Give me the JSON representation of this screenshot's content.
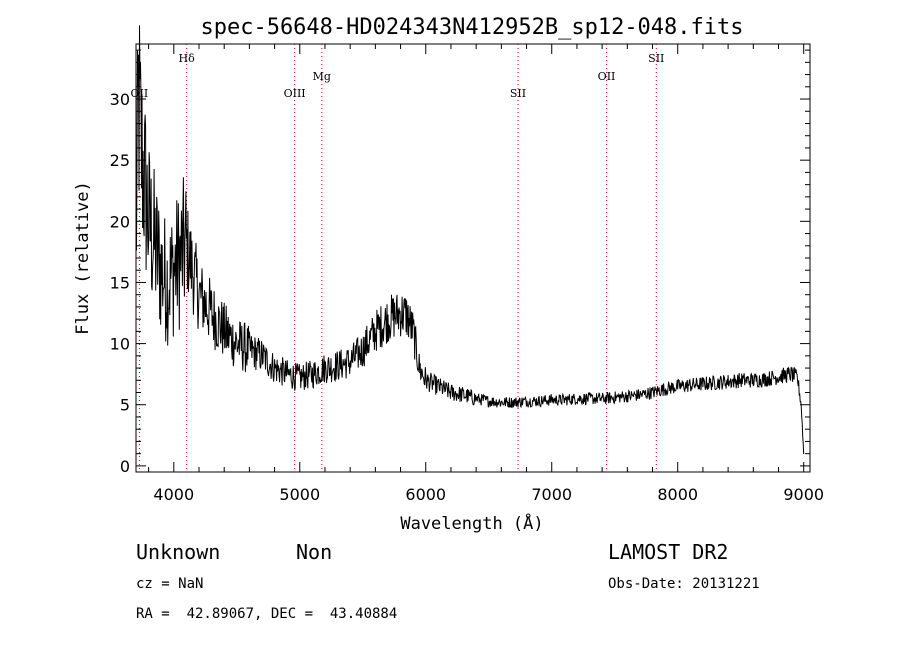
{
  "chart_data": {
    "type": "line",
    "title": "spec-56648-HD024343N412952B_sp12-048.fits",
    "xlabel": "Wavelength (Å)",
    "ylabel": "Flux (relative)",
    "xlim": [
      3700,
      9050
    ],
    "ylim": [
      -0.5,
      34.5
    ],
    "xticks": [
      4000,
      5000,
      6000,
      7000,
      8000,
      9000
    ],
    "yticks": [
      0,
      5,
      10,
      15,
      20,
      25,
      30
    ],
    "grid": false,
    "series": [
      {
        "x": [
          3700,
          3720,
          3740,
          3760,
          3780,
          3800,
          3850,
          3900,
          3950,
          4000,
          4050,
          4100,
          4150,
          4200,
          4300,
          4400,
          4500,
          4600,
          4700,
          4800,
          4900,
          5000,
          5100,
          5200,
          5300,
          5400,
          5500,
          5600,
          5700,
          5800,
          5850,
          5900,
          5950,
          6000,
          6100,
          6200,
          6300,
          6400,
          6500,
          6600,
          6700,
          6800,
          6900,
          7000,
          7100,
          7200,
          7300,
          7400,
          7500,
          7600,
          7700,
          7800,
          7900,
          8000,
          8100,
          8200,
          8300,
          8400,
          8500,
          8600,
          8700,
          8800,
          8900,
          8950,
          8980,
          9000
        ],
        "y": [
          18,
          30,
          26,
          24,
          22,
          20,
          18,
          16,
          15,
          16,
          17,
          18,
          16,
          14,
          12.5,
          11,
          10,
          9.5,
          9,
          8,
          7.5,
          7.2,
          7.5,
          8,
          8.2,
          8.5,
          9.5,
          11,
          12,
          12.5,
          12.3,
          11,
          8,
          7,
          6.5,
          6,
          5.8,
          5.5,
          5.3,
          5.2,
          5.2,
          5.3,
          5.3,
          5.4,
          5.4,
          5.5,
          5.5,
          5.5,
          5.6,
          5.7,
          5.8,
          6,
          6.3,
          6.5,
          6.6,
          6.7,
          6.8,
          6.9,
          7,
          7,
          7.1,
          7.3,
          7.5,
          7.2,
          5,
          1
        ]
      }
    ],
    "annotations": [
      {
        "label": "OII",
        "x": 3727,
        "row": 2
      },
      {
        "label": "Hδ",
        "x": 4102,
        "row": 1
      },
      {
        "label": "OIII",
        "x": 4959,
        "row": 2
      },
      {
        "label": "Mg",
        "x": 5175,
        "row": 1.5
      },
      {
        "label": "SII",
        "x": 6732,
        "row": 2
      },
      {
        "label": "OII",
        "x": 7435,
        "row": 1.5
      },
      {
        "label": "SII",
        "x": 7830,
        "row": 1
      }
    ]
  },
  "info": {
    "class_label": "Unknown",
    "subclass_label": "Non",
    "survey": "LAMOST DR2",
    "cz": "cz = NaN",
    "obs_date": "Obs-Date: 20131221",
    "coords": "RA =  42.89067, DEC =  43.40884"
  }
}
